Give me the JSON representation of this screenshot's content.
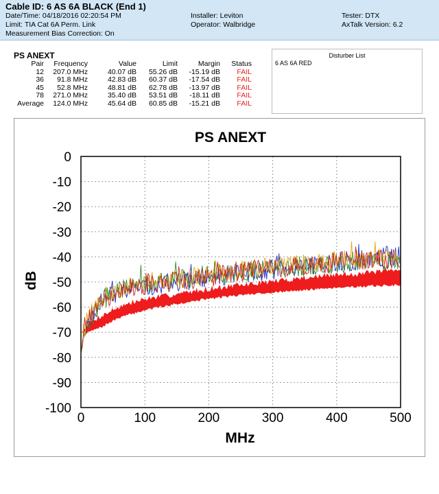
{
  "header": {
    "cable_id": "Cable ID: 6 AS 6A BLACK (End 1)",
    "datetime": "Date/Time: 04/18/2016  02:20:54 PM",
    "limit": "Limit: TIA Cat 6A Perm. Link",
    "bias": "Measurement Bias Correction: On",
    "installer": "Installer: Leviton",
    "operator": "Operator: Walbridge",
    "tester": "Tester: DTX",
    "software": "AxTalk Version: 6.2"
  },
  "summary": {
    "title": "PS ANEXT",
    "columns": [
      "Pair",
      "Frequency",
      "Value",
      "Limit",
      "Margin",
      "Status"
    ],
    "rows": [
      [
        "12",
        "207.0 MHz",
        "40.07 dB",
        "55.26 dB",
        "-15.19 dB",
        "FAIL"
      ],
      [
        "36",
        "91.8 MHz",
        "42.83 dB",
        "60.37 dB",
        "-17.54 dB",
        "FAIL"
      ],
      [
        "45",
        "52.8 MHz",
        "48.81 dB",
        "62.78 dB",
        "-13.97 dB",
        "FAIL"
      ],
      [
        "78",
        "271.0 MHz",
        "35.40 dB",
        "53.51 dB",
        "-18.11 dB",
        "FAIL"
      ],
      [
        "Average",
        "124.0 MHz",
        "45.64 dB",
        "60.85 dB",
        "-15.21 dB",
        "FAIL"
      ]
    ]
  },
  "disturbers": {
    "title": "Disturber List",
    "items": [
      "6 AS 6A RED"
    ]
  },
  "chart_data": {
    "type": "line",
    "title": "PS ANEXT",
    "xlabel": "MHz",
    "ylabel": "dB",
    "xlim": [
      0,
      500
    ],
    "ylim": [
      -100,
      0
    ],
    "xticks": [
      0,
      100,
      200,
      300,
      400,
      500
    ],
    "yticks": [
      0,
      -10,
      -20,
      -30,
      -40,
      -50,
      -60,
      -70,
      -80,
      -90,
      -100
    ],
    "grid": true,
    "limit_band": {
      "color": "#ee1c1c",
      "upper_db": [
        [
          2,
          -70
        ],
        [
          10,
          -67
        ],
        [
          30,
          -64
        ],
        [
          60,
          -60
        ],
        [
          100,
          -57
        ],
        [
          150,
          -55
        ],
        [
          200,
          -53
        ],
        [
          250,
          -51.5
        ],
        [
          300,
          -50
        ],
        [
          350,
          -48.5
        ],
        [
          400,
          -47.5
        ],
        [
          450,
          -46.5
        ],
        [
          500,
          -45.5
        ]
      ],
      "lower_db": [
        [
          2,
          -70
        ],
        [
          10,
          -70
        ],
        [
          30,
          -68
        ],
        [
          60,
          -64
        ],
        [
          100,
          -61
        ],
        [
          150,
          -58.5
        ],
        [
          200,
          -56.5
        ],
        [
          250,
          -55
        ],
        [
          300,
          -54
        ],
        [
          350,
          -53
        ],
        [
          400,
          -52
        ],
        [
          450,
          -51.5
        ],
        [
          500,
          -51
        ]
      ]
    },
    "series": [
      {
        "color": "#1a2fd1",
        "base_db": [
          [
            2,
            -75
          ],
          [
            10,
            -66
          ],
          [
            30,
            -58
          ],
          [
            60,
            -54
          ],
          [
            100,
            -52
          ],
          [
            150,
            -50
          ],
          [
            200,
            -48
          ],
          [
            250,
            -46.5
          ],
          [
            300,
            -45
          ],
          [
            350,
            -44
          ],
          [
            400,
            -42
          ],
          [
            450,
            -41
          ],
          [
            500,
            -39
          ]
        ],
        "peak_db": -36
      },
      {
        "color": "#2e8b2e",
        "base_db": [
          [
            2,
            -76
          ],
          [
            10,
            -67
          ],
          [
            30,
            -58
          ],
          [
            60,
            -53
          ],
          [
            100,
            -51
          ],
          [
            150,
            -49
          ],
          [
            200,
            -47.5
          ],
          [
            250,
            -46
          ],
          [
            300,
            -45
          ],
          [
            350,
            -43.5
          ],
          [
            400,
            -42.5
          ],
          [
            450,
            -41.5
          ],
          [
            500,
            -41
          ]
        ],
        "peak_db": -38
      },
      {
        "color": "#e8a317",
        "base_db": [
          [
            2,
            -74
          ],
          [
            10,
            -65
          ],
          [
            30,
            -57
          ],
          [
            60,
            -53
          ],
          [
            100,
            -51
          ],
          [
            150,
            -49
          ],
          [
            200,
            -47
          ],
          [
            250,
            -45.5
          ],
          [
            300,
            -44
          ],
          [
            350,
            -43
          ],
          [
            400,
            -41.5
          ],
          [
            450,
            -40.5
          ],
          [
            500,
            -40
          ]
        ],
        "peak_db": -35
      },
      {
        "color": "#c2261f",
        "base_db": [
          [
            2,
            -75
          ],
          [
            10,
            -66
          ],
          [
            30,
            -58
          ],
          [
            60,
            -54
          ],
          [
            100,
            -51.5
          ],
          [
            150,
            -49.5
          ],
          [
            200,
            -48
          ],
          [
            250,
            -46
          ],
          [
            300,
            -44.5
          ],
          [
            350,
            -43.5
          ],
          [
            400,
            -42
          ],
          [
            450,
            -41
          ],
          [
            500,
            -40.5
          ]
        ],
        "peak_db": -36
      }
    ]
  }
}
